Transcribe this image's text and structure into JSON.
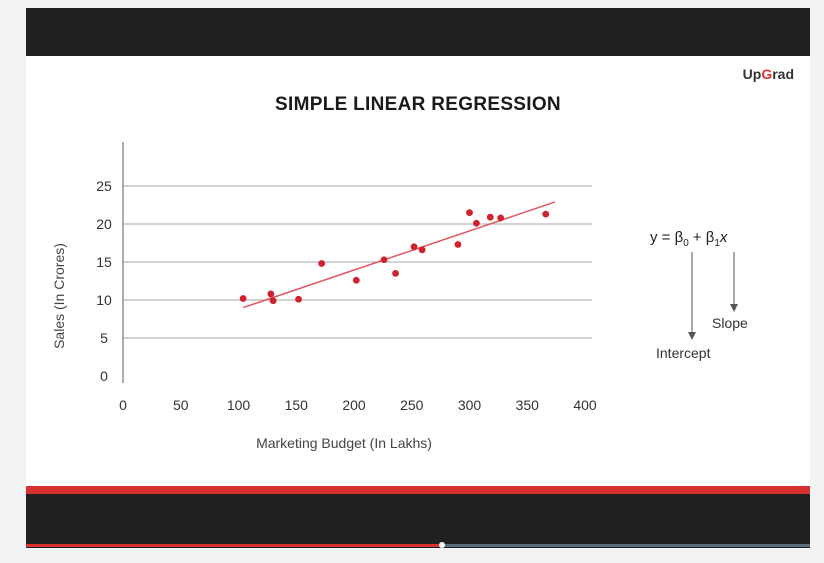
{
  "brand": {
    "pre": "Up",
    "g": "G",
    "post": "rad"
  },
  "slide": {
    "title": "SIMPLE LINEAR REGRESSION"
  },
  "equation": {
    "lhs": "y = β",
    "sub0": "0",
    "plus": "+ β",
    "sub1": "1",
    "x": "x",
    "slope_label": "Slope",
    "intercept_label": "Intercept"
  },
  "player": {
    "progress": 0.53
  },
  "colors": {
    "point": "#d0212e",
    "line": "#e05560",
    "accent": "#d93030",
    "grid": "#a9a9a9"
  },
  "chart_data": {
    "type": "scatter",
    "title": "SIMPLE LINEAR REGRESSION",
    "xlabel": "Marketing Budget (In Lakhs)",
    "ylabel": "Sales (In Crores)",
    "xlim": [
      0,
      400
    ],
    "ylim": [
      0,
      25
    ],
    "xticks": [
      0,
      50,
      100,
      150,
      200,
      250,
      300,
      350,
      400
    ],
    "yticks": [
      0,
      5,
      10,
      15,
      20,
      25
    ],
    "grid": "horizontal",
    "points": [
      {
        "x": 104,
        "y": 10.2
      },
      {
        "x": 128,
        "y": 10.8
      },
      {
        "x": 130,
        "y": 9.9
      },
      {
        "x": 152,
        "y": 10.1
      },
      {
        "x": 172,
        "y": 14.8
      },
      {
        "x": 202,
        "y": 12.6
      },
      {
        "x": 226,
        "y": 15.3
      },
      {
        "x": 236,
        "y": 13.5
      },
      {
        "x": 252,
        "y": 17.0
      },
      {
        "x": 259,
        "y": 16.6
      },
      {
        "x": 290,
        "y": 17.3
      },
      {
        "x": 300,
        "y": 21.5
      },
      {
        "x": 306,
        "y": 20.1
      },
      {
        "x": 318,
        "y": 20.9
      },
      {
        "x": 327,
        "y": 20.8
      },
      {
        "x": 366,
        "y": 21.3
      }
    ],
    "fit_line": {
      "x": [
        104,
        374
      ],
      "y": [
        9.0,
        22.9
      ]
    }
  }
}
